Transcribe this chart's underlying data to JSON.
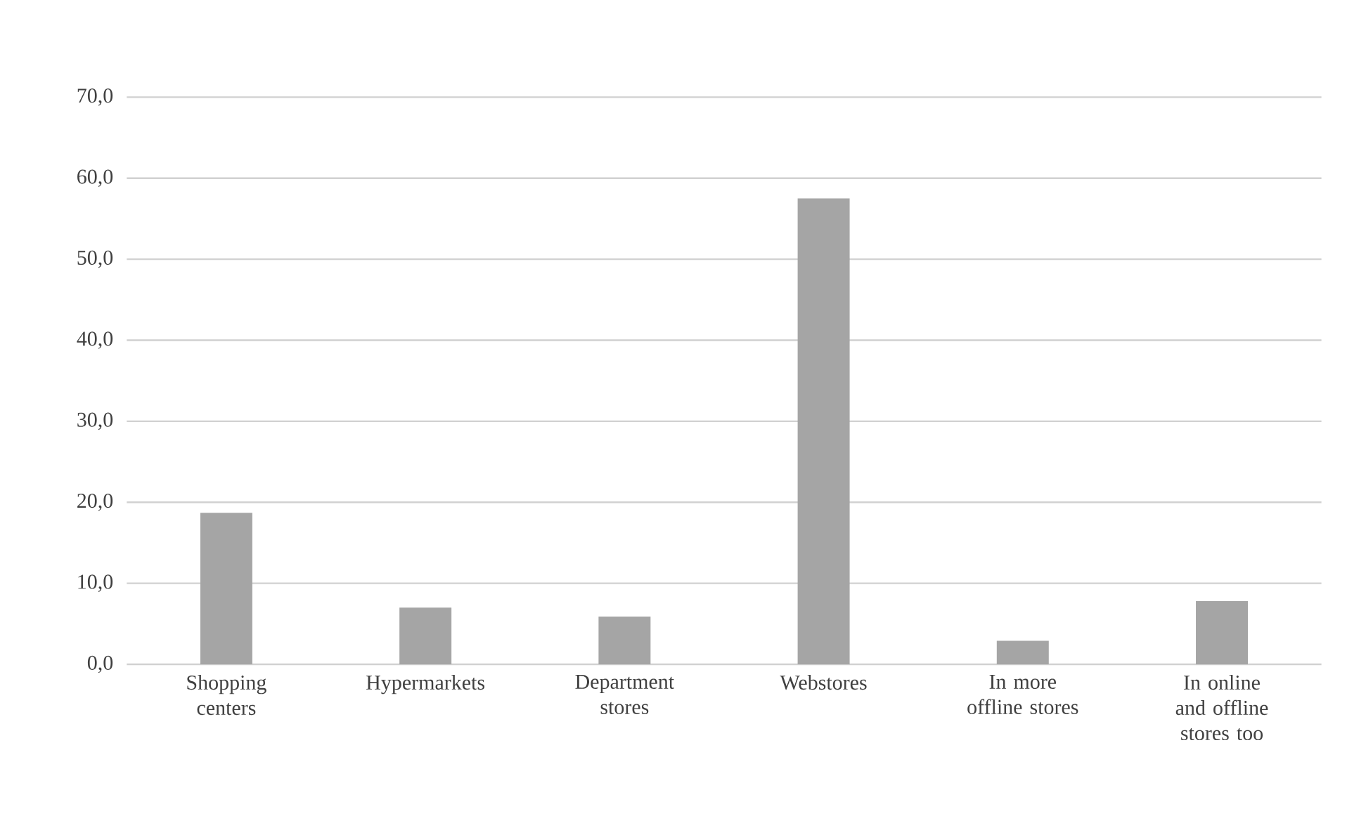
{
  "chart_data": {
    "type": "bar",
    "categories": [
      "Shopping centers",
      "Hypermarkets",
      "Department stores",
      "Webstores",
      "In more offline stores",
      "In online and offline stores too"
    ],
    "values": [
      18.7,
      7.0,
      5.9,
      57.5,
      2.9,
      7.8
    ],
    "color": "#a5a5a5",
    "ylim": [
      0,
      70
    ],
    "yticks": [
      {
        "value": 0,
        "label": "0,0"
      },
      {
        "value": 10,
        "label": "10,0"
      },
      {
        "value": 20,
        "label": "20,0"
      },
      {
        "value": 30,
        "label": "30,0"
      },
      {
        "value": 40,
        "label": "40,0"
      },
      {
        "value": 50,
        "label": "50,0"
      },
      {
        "value": 60,
        "label": "60,0"
      },
      {
        "value": 70,
        "label": "70,0"
      }
    ],
    "grid": "y"
  }
}
